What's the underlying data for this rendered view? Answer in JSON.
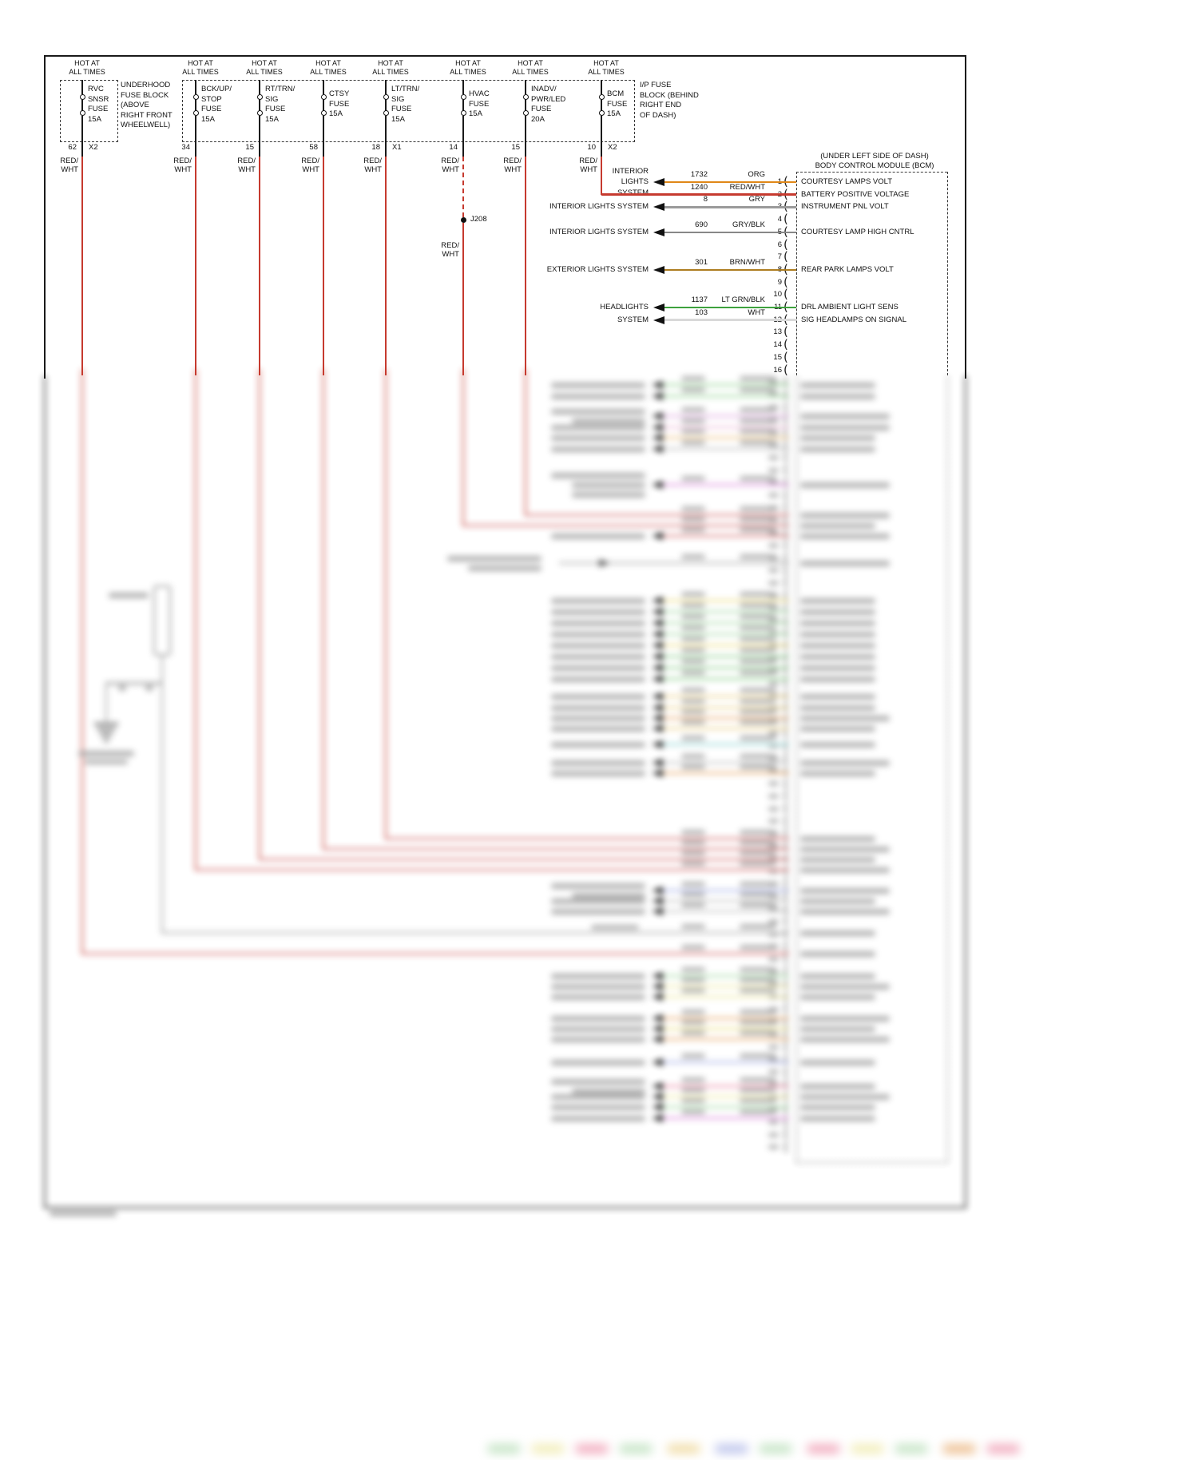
{
  "fuse_blocks": {
    "underhood": {
      "label_lines": [
        "UNDERHOOD",
        "FUSE BLOCK",
        "(ABOVE",
        "RIGHT FRONT",
        "WHEELWELL)"
      ]
    },
    "ip": {
      "label_lines": [
        "I/P FUSE",
        "BLOCK (BEHIND",
        "RIGHT END",
        "OF DASH)"
      ]
    }
  },
  "fuses": [
    {
      "hot_lines": [
        "HOT AT",
        "ALL TIMES"
      ],
      "name_lines": [
        "RVC",
        "SNSR",
        "FUSE",
        "15A"
      ],
      "pin": "62",
      "conn": "X2",
      "wire_lines": [
        "RED/",
        "WHT"
      ]
    },
    {
      "hot_lines": [
        "HOT AT",
        "ALL TIMES"
      ],
      "name_lines": [
        "BCK/UP/",
        "STOP",
        "FUSE",
        "15A"
      ],
      "pin": "34",
      "conn": "",
      "wire_lines": [
        "RED/",
        "WHT"
      ]
    },
    {
      "hot_lines": [
        "HOT AT",
        "ALL TIMES"
      ],
      "name_lines": [
        "RT/TRN/",
        "SIG",
        "FUSE",
        "15A"
      ],
      "pin": "15",
      "conn": "",
      "wire_lines": [
        "RED/",
        "WHT"
      ]
    },
    {
      "hot_lines": [
        "HOT AT",
        "ALL TIMES"
      ],
      "name_lines": [
        "CTSY",
        "FUSE",
        "15A"
      ],
      "pin": "58",
      "conn": "",
      "wire_lines": [
        "RED/",
        "WHT"
      ]
    },
    {
      "hot_lines": [
        "HOT AT",
        "ALL TIMES"
      ],
      "name_lines": [
        "LT/TRN/",
        "SIG",
        "FUSE",
        "15A"
      ],
      "pin": "18",
      "conn": "X1",
      "wire_lines": [
        "RED/",
        "WHT"
      ]
    },
    {
      "hot_lines": [
        "HOT AT",
        "ALL TIMES"
      ],
      "name_lines": [
        "HVAC",
        "FUSE",
        "15A"
      ],
      "pin": "14",
      "conn": "",
      "wire_lines": [
        "RED/",
        "WHT"
      ],
      "junction": "J208",
      "below_junction_wire_lines": [
        "RED/",
        "WHT"
      ]
    },
    {
      "hot_lines": [
        "HOT AT",
        "ALL TIMES"
      ],
      "name_lines": [
        "INADV/",
        "PWR/LED",
        "FUSE",
        "20A"
      ],
      "pin": "15",
      "conn": "",
      "wire_lines": [
        "RED/",
        "WHT"
      ]
    },
    {
      "hot_lines": [
        "HOT AT",
        "ALL TIMES"
      ],
      "name_lines": [
        "BCM",
        "FUSE",
        "15A"
      ],
      "pin": "10",
      "conn": "X2",
      "wire_lines": [
        "RED/",
        "WHT"
      ]
    }
  ],
  "bcm": {
    "location_lines": [
      "(UNDER LEFT SIDE OF DASH)",
      "BODY CONTROL MODULE (BCM)"
    ],
    "pins": [
      {
        "n": "1",
        "label": "COURTESY LAMPS VOLT",
        "circuit": "1732",
        "code": "ORG",
        "wire_color": "#e08818",
        "from_lines": [
          "INTERIOR",
          "LIGHTS",
          "SYSTEM"
        ]
      },
      {
        "n": "2",
        "label": "BATTERY POSITIVE VOLTAGE",
        "circuit": "1240",
        "code": "RED/WHT",
        "wire_color": "#c63a2f",
        "from_fuse": true
      },
      {
        "n": "3",
        "label": "INSTRUMENT PNL VOLT",
        "circuit": "8",
        "code": "GRY",
        "wire_color": "#9a9a9a",
        "from_lines": [
          "INTERIOR LIGHTS SYSTEM"
        ]
      },
      {
        "n": "4"
      },
      {
        "n": "5",
        "label": "COURTESY LAMP HIGH CNTRL",
        "circuit": "690",
        "code": "GRY/BLK",
        "wire_color": "#878787",
        "from_lines": [
          "INTERIOR LIGHTS SYSTEM"
        ]
      },
      {
        "n": "6"
      },
      {
        "n": "7"
      },
      {
        "n": "8",
        "label": "REAR PARK LAMPS VOLT",
        "circuit": "301",
        "code": "BRN/WHT",
        "wire_color": "#ad7d20",
        "from_lines": [
          "EXTERIOR LIGHTS SYSTEM"
        ]
      },
      {
        "n": "9"
      },
      {
        "n": "10"
      },
      {
        "n": "11",
        "label": "DRL AMBIENT LIGHT SENS",
        "circuit": "1137",
        "code": "LT GRN/BLK",
        "wire_color": "#3da23d",
        "from_lines": [
          "HEADLIGHTS",
          "SYSTEM"
        ]
      },
      {
        "n": "12",
        "label": "SIG HEADLAMPS ON SIGNAL",
        "circuit": "103",
        "code": "WHT",
        "wire_color": "#d9d9d9"
      },
      {
        "n": "13"
      },
      {
        "n": "14"
      },
      {
        "n": "15"
      },
      {
        "n": "16"
      }
    ]
  },
  "blurred_region": {
    "present": true,
    "description": "lower two-thirds of the schematic is blurred and illegible"
  }
}
